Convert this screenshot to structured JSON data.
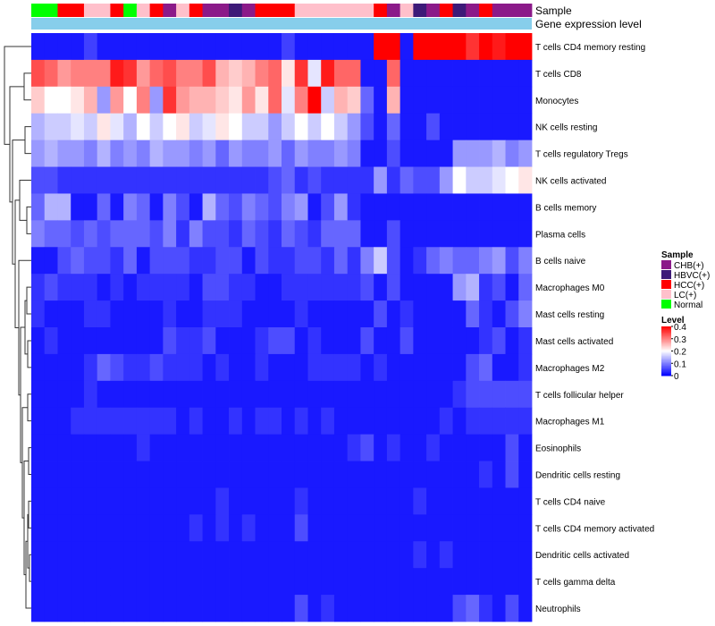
{
  "chart_data": {
    "type": "heatmap",
    "title": "",
    "annotation_tracks": [
      "Sample",
      "Gene expression level"
    ],
    "gene_expression_color": "#87ceeb",
    "rows": [
      "T cells CD4 memory resting",
      "T cells CD8",
      "Monocytes",
      "NK cells resting",
      "T cells regulatory  Tregs",
      "NK cells activated",
      "B cells memory",
      "Plasma cells",
      "B cells naive",
      "Macrophages M0",
      "Mast cells resting",
      "Mast cells activated",
      "Macrophages M2",
      "T cells follicular helper",
      "Macrophages M1",
      "Eosinophils",
      "Dendritic cells resting",
      "T cells CD4 naive",
      "T cells CD4 memory activated",
      "Dendritic cells activated",
      "T cells gamma delta",
      "Neutrophils"
    ],
    "sample_groups": [
      "Normal",
      "Normal",
      "HCC(+)",
      "HCC(+)",
      "LC(+)",
      "LC(+)",
      "HCC(+)",
      "Normal",
      "LC(+)",
      "HCC(+)",
      "CHB(+)",
      "LC(+)",
      "HCC(+)",
      "CHB(+)",
      "CHB(+)",
      "HBVC(+)",
      "CHB(+)",
      "HCC(+)",
      "HCC(+)",
      "HCC(+)",
      "LC(+)",
      "LC(+)",
      "LC(+)",
      "LC(+)",
      "LC(+)",
      "LC(+)",
      "HCC(+)",
      "CHB(+)",
      "LC(+)",
      "HBVC(+)",
      "CHB(+)",
      "HCC(+)",
      "HBVC(+)",
      "CHB(+)",
      "HCC(+)",
      "CHB(+)",
      "CHB(+)",
      "CHB(+)"
    ],
    "values": [
      [
        0.02,
        0.02,
        0.02,
        0.02,
        0.05,
        0.02,
        0.02,
        0.02,
        0.02,
        0.02,
        0.02,
        0.02,
        0.02,
        0.02,
        0.02,
        0.02,
        0.02,
        0.02,
        0.02,
        0.05,
        0.02,
        0.02,
        0.02,
        0.02,
        0.02,
        0.02,
        0.4,
        0.4,
        0.02,
        0.4,
        0.4,
        0.4,
        0.4,
        0.36,
        0.4,
        0.38,
        0.4,
        0.4
      ],
      [
        0.34,
        0.32,
        0.28,
        0.3,
        0.3,
        0.3,
        0.38,
        0.36,
        0.28,
        0.32,
        0.34,
        0.3,
        0.3,
        0.34,
        0.26,
        0.24,
        0.26,
        0.3,
        0.32,
        0.22,
        0.36,
        0.18,
        0.38,
        0.32,
        0.32,
        0.02,
        0.02,
        0.32,
        0.02,
        0.02,
        0.02,
        0.02,
        0.02,
        0.02,
        0.02,
        0.02,
        0.02,
        0.02
      ],
      [
        0.24,
        0.2,
        0.2,
        0.22,
        0.26,
        0.12,
        0.28,
        0.2,
        0.3,
        0.12,
        0.36,
        0.28,
        0.26,
        0.26,
        0.24,
        0.22,
        0.28,
        0.22,
        0.32,
        0.18,
        0.3,
        0.4,
        0.16,
        0.26,
        0.24,
        0.08,
        0.02,
        0.26,
        0.02,
        0.02,
        0.02,
        0.02,
        0.02,
        0.02,
        0.02,
        0.02,
        0.02,
        0.02
      ],
      [
        0.14,
        0.16,
        0.16,
        0.18,
        0.16,
        0.22,
        0.18,
        0.14,
        0.2,
        0.16,
        0.2,
        0.22,
        0.16,
        0.18,
        0.22,
        0.2,
        0.16,
        0.16,
        0.12,
        0.16,
        0.2,
        0.16,
        0.2,
        0.16,
        0.12,
        0.06,
        0.02,
        0.08,
        0.02,
        0.02,
        0.06,
        0.02,
        0.02,
        0.02,
        0.02,
        0.02,
        0.02,
        0.02
      ],
      [
        0.12,
        0.14,
        0.12,
        0.12,
        0.1,
        0.14,
        0.1,
        0.12,
        0.1,
        0.14,
        0.12,
        0.12,
        0.1,
        0.12,
        0.08,
        0.12,
        0.1,
        0.1,
        0.12,
        0.08,
        0.12,
        0.1,
        0.1,
        0.12,
        0.1,
        0.02,
        0.02,
        0.06,
        0.02,
        0.02,
        0.02,
        0.02,
        0.12,
        0.12,
        0.12,
        0.14,
        0.1,
        0.12
      ],
      [
        0.06,
        0.06,
        0.04,
        0.04,
        0.04,
        0.04,
        0.04,
        0.04,
        0.04,
        0.04,
        0.04,
        0.04,
        0.04,
        0.04,
        0.04,
        0.04,
        0.04,
        0.04,
        0.06,
        0.08,
        0.04,
        0.06,
        0.04,
        0.04,
        0.04,
        0.04,
        0.12,
        0.04,
        0.08,
        0.06,
        0.06,
        0.12,
        0.2,
        0.16,
        0.16,
        0.18,
        0.2,
        0.22
      ],
      [
        0.08,
        0.14,
        0.14,
        0.02,
        0.02,
        0.08,
        0.02,
        0.1,
        0.08,
        0.02,
        0.1,
        0.06,
        0.02,
        0.14,
        0.08,
        0.06,
        0.1,
        0.08,
        0.06,
        0.1,
        0.12,
        0.02,
        0.06,
        0.12,
        0.04,
        0.02,
        0.02,
        0.02,
        0.02,
        0.02,
        0.02,
        0.02,
        0.02,
        0.02,
        0.02,
        0.02,
        0.02,
        0.02
      ],
      [
        0.1,
        0.08,
        0.08,
        0.06,
        0.08,
        0.06,
        0.08,
        0.08,
        0.08,
        0.06,
        0.1,
        0.04,
        0.1,
        0.06,
        0.06,
        0.04,
        0.08,
        0.06,
        0.04,
        0.08,
        0.06,
        0.04,
        0.08,
        0.08,
        0.08,
        0.02,
        0.02,
        0.06,
        0.02,
        0.02,
        0.02,
        0.02,
        0.02,
        0.02,
        0.02,
        0.02,
        0.02,
        0.02
      ],
      [
        0.02,
        0.02,
        0.06,
        0.08,
        0.06,
        0.06,
        0.04,
        0.08,
        0.02,
        0.06,
        0.06,
        0.06,
        0.04,
        0.04,
        0.06,
        0.06,
        0.02,
        0.06,
        0.04,
        0.04,
        0.06,
        0.06,
        0.04,
        0.08,
        0.04,
        0.1,
        0.16,
        0.06,
        0.02,
        0.04,
        0.08,
        0.1,
        0.08,
        0.08,
        0.1,
        0.12,
        0.06,
        0.1
      ],
      [
        0.04,
        0.06,
        0.04,
        0.04,
        0.04,
        0.02,
        0.04,
        0.02,
        0.04,
        0.04,
        0.04,
        0.04,
        0.02,
        0.06,
        0.06,
        0.04,
        0.04,
        0.02,
        0.02,
        0.04,
        0.04,
        0.04,
        0.04,
        0.04,
        0.04,
        0.06,
        0.02,
        0.06,
        0.02,
        0.02,
        0.02,
        0.02,
        0.12,
        0.14,
        0.04,
        0.06,
        0.02,
        0.08
      ],
      [
        0.04,
        0.02,
        0.02,
        0.02,
        0.04,
        0.04,
        0.02,
        0.02,
        0.02,
        0.02,
        0.04,
        0.02,
        0.02,
        0.04,
        0.04,
        0.04,
        0.02,
        0.02,
        0.02,
        0.02,
        0.04,
        0.02,
        0.02,
        0.02,
        0.02,
        0.02,
        0.06,
        0.02,
        0.04,
        0.02,
        0.02,
        0.02,
        0.02,
        0.08,
        0.04,
        0.02,
        0.06,
        0.1
      ],
      [
        0.02,
        0.04,
        0.02,
        0.02,
        0.02,
        0.02,
        0.02,
        0.02,
        0.02,
        0.02,
        0.06,
        0.04,
        0.04,
        0.06,
        0.02,
        0.02,
        0.02,
        0.04,
        0.06,
        0.06,
        0.02,
        0.04,
        0.02,
        0.02,
        0.02,
        0.06,
        0.02,
        0.02,
        0.06,
        0.02,
        0.02,
        0.02,
        0.02,
        0.02,
        0.04,
        0.06,
        0.02,
        0.04
      ],
      [
        0.02,
        0.02,
        0.02,
        0.02,
        0.04,
        0.08,
        0.06,
        0.04,
        0.04,
        0.06,
        0.04,
        0.04,
        0.04,
        0.02,
        0.04,
        0.02,
        0.02,
        0.04,
        0.02,
        0.02,
        0.02,
        0.04,
        0.04,
        0.04,
        0.04,
        0.02,
        0.04,
        0.02,
        0.02,
        0.02,
        0.02,
        0.02,
        0.02,
        0.06,
        0.08,
        0.02,
        0.02,
        0.04
      ],
      [
        0.02,
        0.02,
        0.02,
        0.02,
        0.04,
        0.02,
        0.02,
        0.02,
        0.02,
        0.02,
        0.02,
        0.02,
        0.02,
        0.02,
        0.02,
        0.02,
        0.02,
        0.02,
        0.02,
        0.02,
        0.02,
        0.02,
        0.02,
        0.02,
        0.02,
        0.02,
        0.02,
        0.02,
        0.02,
        0.02,
        0.02,
        0.02,
        0.04,
        0.06,
        0.06,
        0.06,
        0.06,
        0.06
      ],
      [
        0.02,
        0.02,
        0.02,
        0.04,
        0.04,
        0.04,
        0.04,
        0.04,
        0.04,
        0.04,
        0.04,
        0.02,
        0.04,
        0.02,
        0.02,
        0.04,
        0.02,
        0.04,
        0.04,
        0.02,
        0.04,
        0.02,
        0.04,
        0.02,
        0.02,
        0.02,
        0.02,
        0.02,
        0.02,
        0.02,
        0.02,
        0.04,
        0.02,
        0.04,
        0.04,
        0.04,
        0.04,
        0.04
      ],
      [
        0.02,
        0.02,
        0.02,
        0.02,
        0.02,
        0.02,
        0.02,
        0.02,
        0.04,
        0.02,
        0.02,
        0.02,
        0.02,
        0.02,
        0.02,
        0.02,
        0.02,
        0.02,
        0.02,
        0.02,
        0.02,
        0.02,
        0.02,
        0.02,
        0.04,
        0.06,
        0.02,
        0.04,
        0.02,
        0.02,
        0.04,
        0.02,
        0.02,
        0.02,
        0.02,
        0.02,
        0.06,
        0.02
      ],
      [
        0.02,
        0.02,
        0.02,
        0.02,
        0.02,
        0.02,
        0.02,
        0.02,
        0.02,
        0.02,
        0.02,
        0.02,
        0.02,
        0.02,
        0.02,
        0.02,
        0.02,
        0.02,
        0.02,
        0.02,
        0.02,
        0.02,
        0.02,
        0.02,
        0.02,
        0.02,
        0.02,
        0.02,
        0.02,
        0.02,
        0.02,
        0.02,
        0.02,
        0.02,
        0.04,
        0.02,
        0.06,
        0.02
      ],
      [
        0.02,
        0.02,
        0.02,
        0.02,
        0.02,
        0.02,
        0.02,
        0.02,
        0.02,
        0.02,
        0.02,
        0.02,
        0.02,
        0.02,
        0.04,
        0.02,
        0.02,
        0.02,
        0.02,
        0.02,
        0.04,
        0.02,
        0.02,
        0.02,
        0.02,
        0.02,
        0.02,
        0.02,
        0.02,
        0.04,
        0.02,
        0.02,
        0.02,
        0.02,
        0.02,
        0.02,
        0.02,
        0.02
      ],
      [
        0.02,
        0.02,
        0.02,
        0.02,
        0.02,
        0.02,
        0.02,
        0.02,
        0.02,
        0.02,
        0.02,
        0.02,
        0.04,
        0.02,
        0.04,
        0.02,
        0.04,
        0.02,
        0.02,
        0.02,
        0.06,
        0.02,
        0.02,
        0.02,
        0.02,
        0.02,
        0.02,
        0.02,
        0.02,
        0.02,
        0.02,
        0.02,
        0.02,
        0.02,
        0.02,
        0.02,
        0.02,
        0.02
      ],
      [
        0.02,
        0.02,
        0.02,
        0.02,
        0.02,
        0.02,
        0.02,
        0.02,
        0.02,
        0.02,
        0.02,
        0.02,
        0.02,
        0.02,
        0.02,
        0.02,
        0.02,
        0.02,
        0.02,
        0.02,
        0.02,
        0.02,
        0.02,
        0.02,
        0.02,
        0.02,
        0.02,
        0.02,
        0.02,
        0.04,
        0.02,
        0.04,
        0.02,
        0.02,
        0.02,
        0.02,
        0.02,
        0.02
      ],
      [
        0.02,
        0.02,
        0.02,
        0.02,
        0.02,
        0.02,
        0.02,
        0.02,
        0.02,
        0.02,
        0.02,
        0.02,
        0.02,
        0.02,
        0.02,
        0.02,
        0.02,
        0.02,
        0.02,
        0.02,
        0.02,
        0.02,
        0.02,
        0.02,
        0.02,
        0.02,
        0.02,
        0.02,
        0.02,
        0.02,
        0.02,
        0.02,
        0.02,
        0.02,
        0.02,
        0.02,
        0.02,
        0.02
      ],
      [
        0.02,
        0.02,
        0.02,
        0.02,
        0.02,
        0.02,
        0.02,
        0.02,
        0.02,
        0.02,
        0.02,
        0.02,
        0.02,
        0.02,
        0.02,
        0.02,
        0.02,
        0.02,
        0.02,
        0.02,
        0.06,
        0.02,
        0.04,
        0.02,
        0.02,
        0.02,
        0.02,
        0.02,
        0.02,
        0.02,
        0.02,
        0.02,
        0.06,
        0.08,
        0.04,
        0.02,
        0.06,
        0.02
      ]
    ],
    "legend": {
      "sample_title": "Sample",
      "sample_items": [
        {
          "label": "CHB(+)",
          "color": "#8b1a89"
        },
        {
          "label": "HBVC(+)",
          "color": "#3d1a78"
        },
        {
          "label": "HCC(+)",
          "color": "#ff0000"
        },
        {
          "label": "LC(+)",
          "color": "#ffc0cb"
        },
        {
          "label": "Normal",
          "color": "#00ff00"
        }
      ],
      "level_title": "Level",
      "level_ticks": [
        "0.4",
        "0.3",
        "0.2",
        "0.1",
        "0"
      ],
      "level_min": 0,
      "level_max": 0.4,
      "colors": {
        "low": "#0000ff",
        "mid": "#ffffff",
        "high": "#ff0000"
      }
    }
  }
}
